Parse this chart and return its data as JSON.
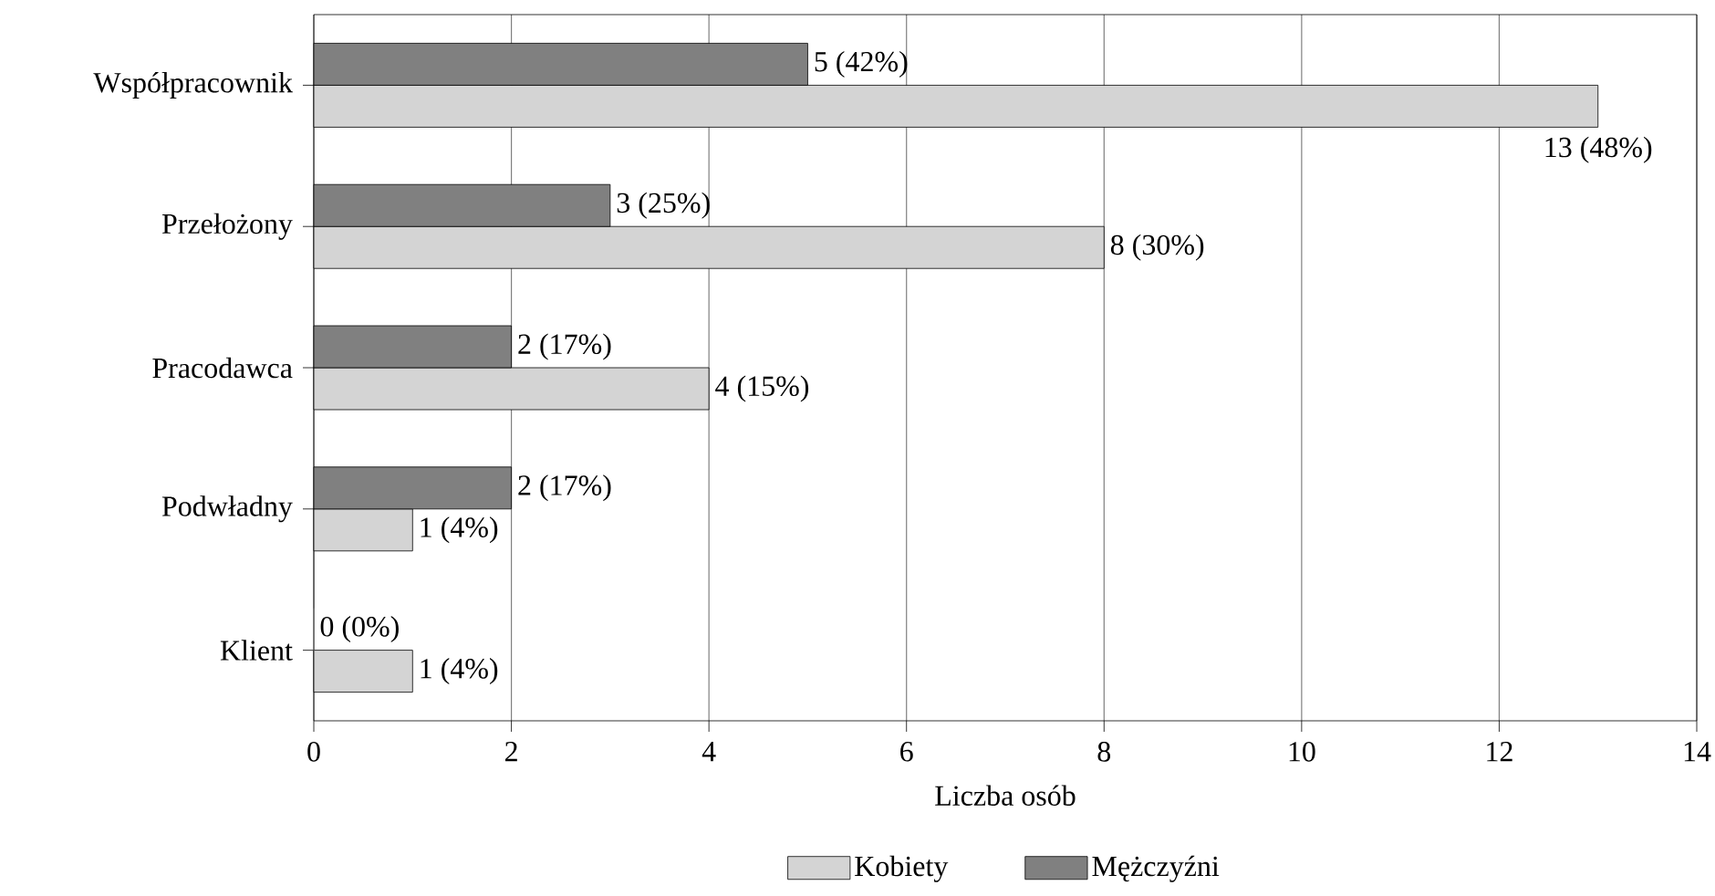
{
  "chart_data": {
    "type": "bar",
    "orientation": "horizontal",
    "xlabel": "Liczba osób",
    "categories": [
      "Współpracownik",
      "Przełożony",
      "Pracodawca",
      "Podwładny",
      "Klient"
    ],
    "series": [
      {
        "name": "Kobiety",
        "color": "#d4d4d4",
        "values": [
          13,
          8,
          4,
          1,
          1
        ],
        "value_labels": [
          "13 (48%)",
          "8 (30%)",
          "4 (15%)",
          "1 (4%)",
          "1 (4%)"
        ]
      },
      {
        "name": "Mężczyźni",
        "color": "#808080",
        "values": [
          5,
          3,
          2,
          2,
          0
        ],
        "value_labels": [
          "5 (42%)",
          "3 (25%)",
          "2 (17%)",
          "2 (17%)",
          "0 (0%)"
        ]
      }
    ],
    "xlim": [
      0,
      14
    ],
    "xticks": [
      0,
      2,
      4,
      6,
      8,
      10,
      12,
      14
    ],
    "grid": "x",
    "legend": "bottom"
  }
}
